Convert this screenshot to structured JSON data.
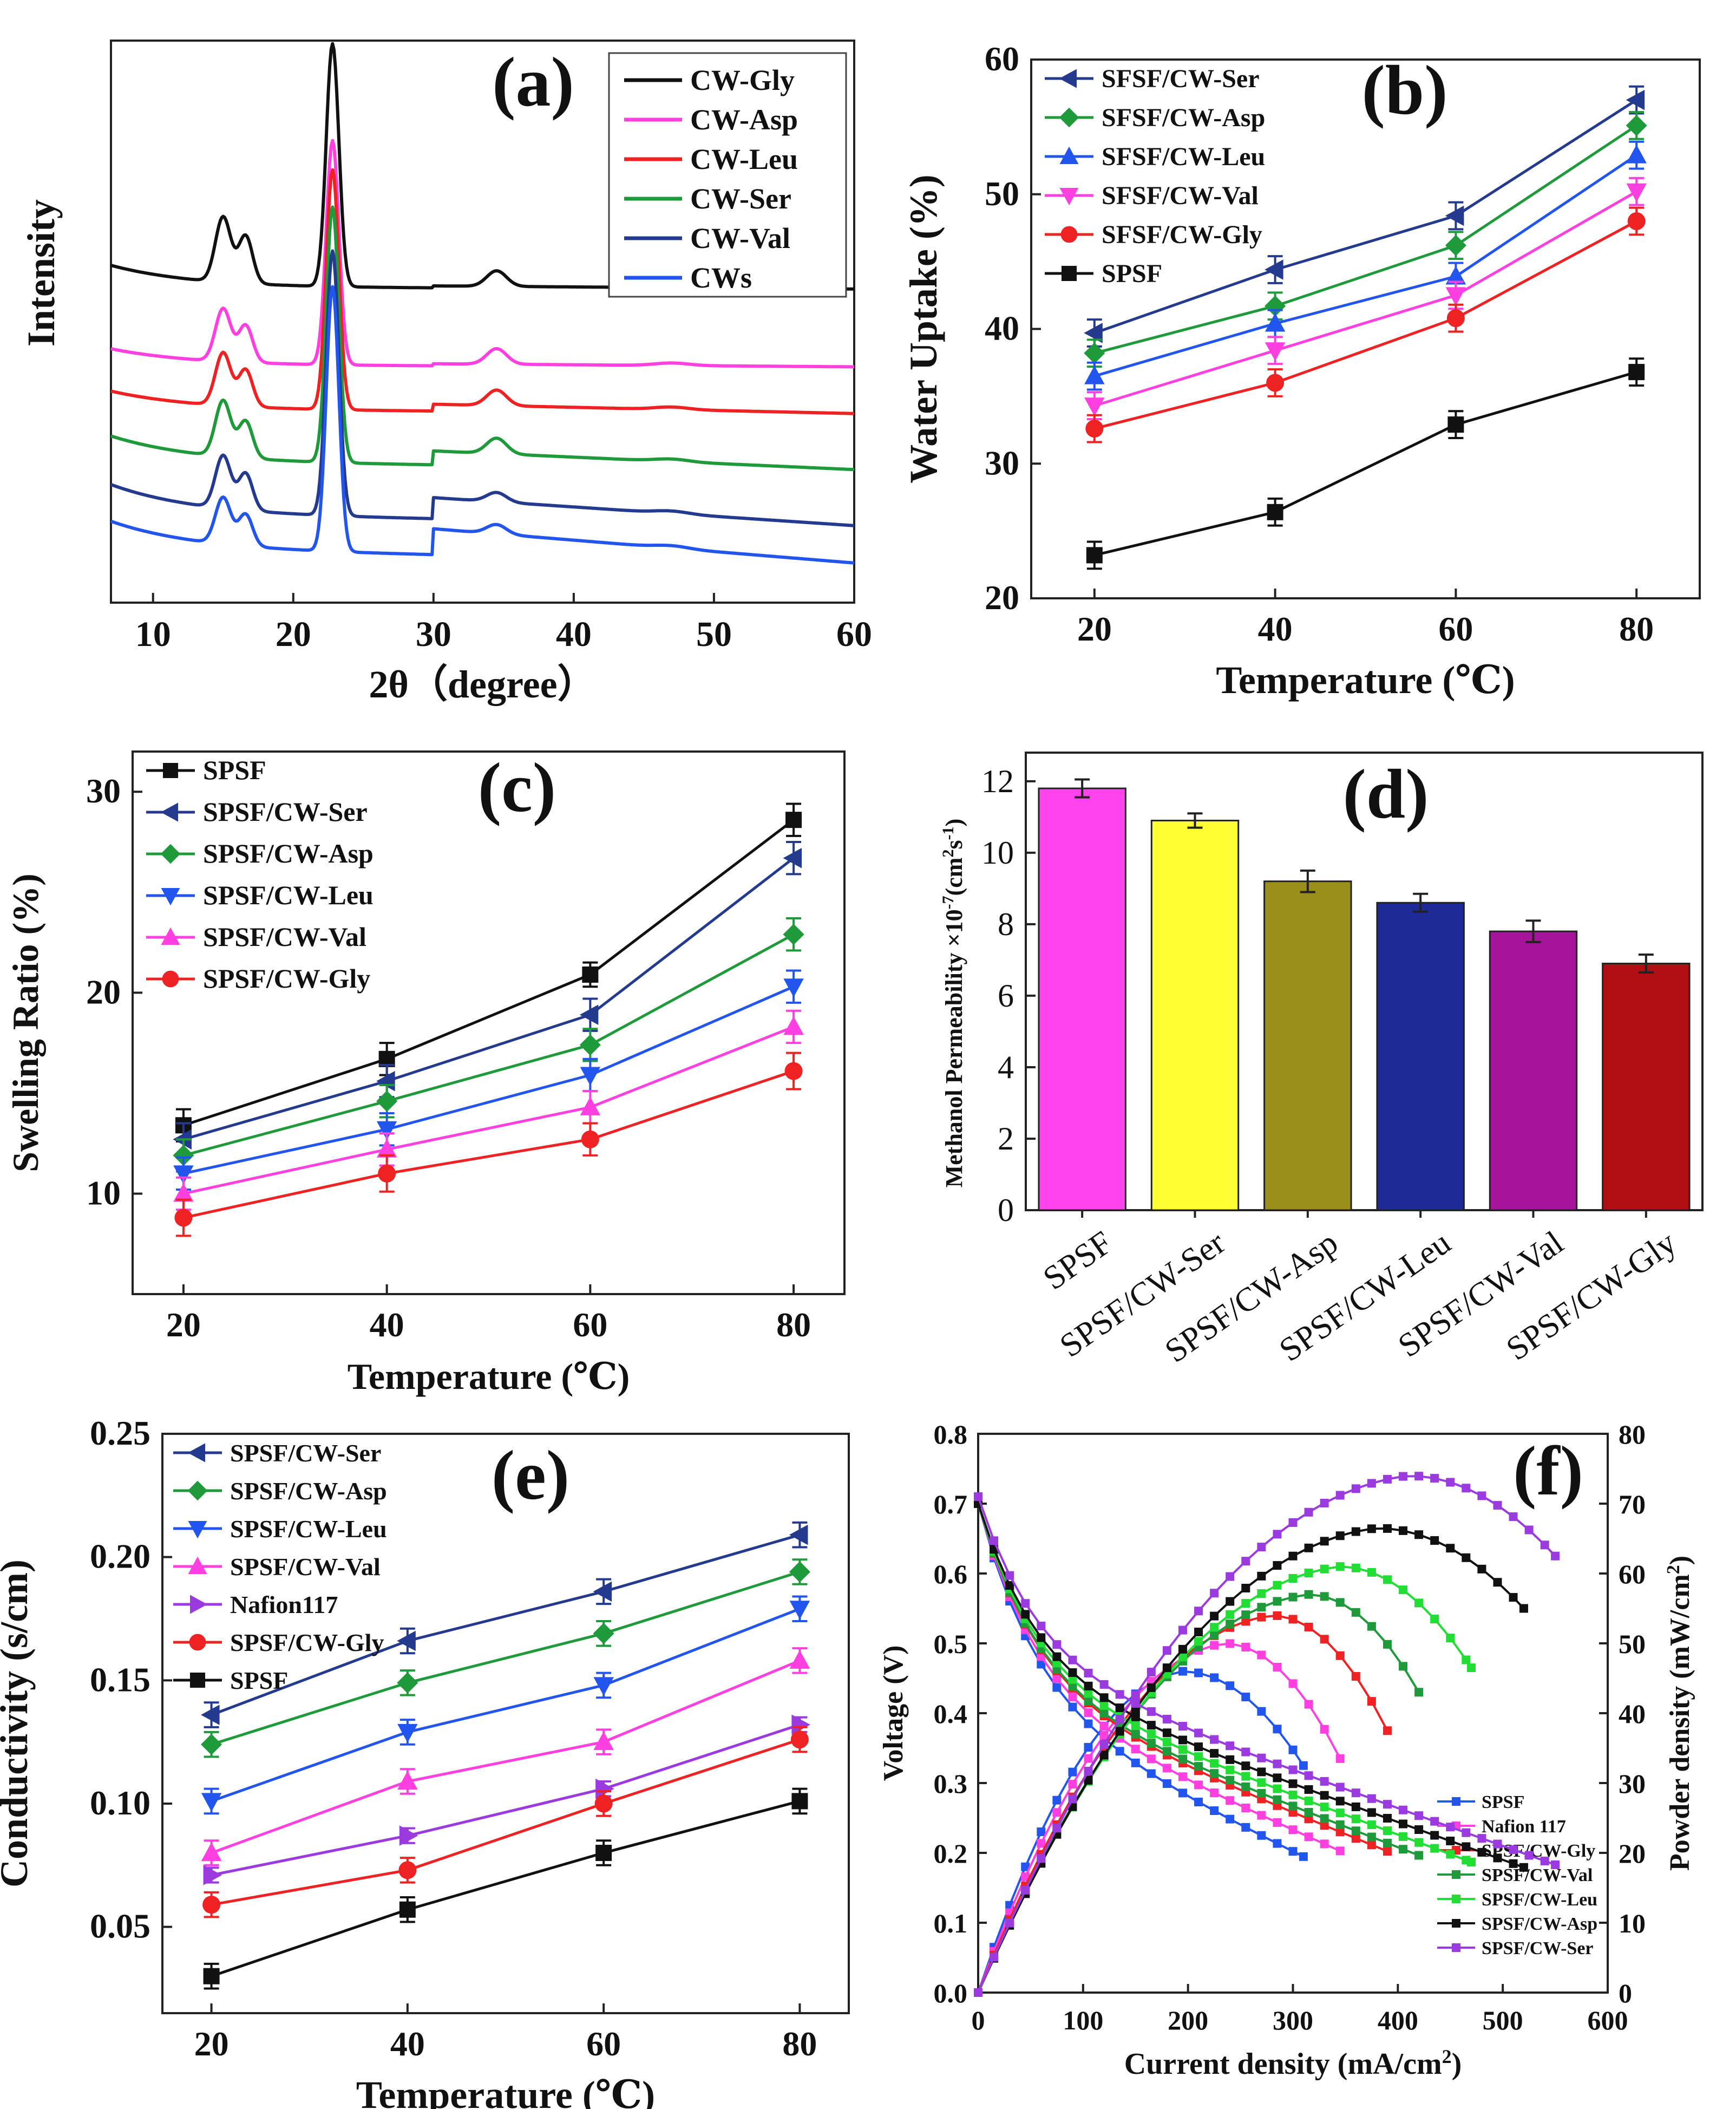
{
  "colors": {
    "black": "#111111",
    "magenta": "#ff3fe0",
    "red": "#ee2222",
    "green": "#1f9a3a",
    "navy": "#233a8f",
    "blue": "#2255ee",
    "violet": "#9b3bdf",
    "brightgreen": "#22dd33",
    "bar_spsf": "#ff44ee",
    "bar_ser": "#ffff33",
    "bar_asp": "#9a8f1a",
    "bar_leu": "#1f2a99",
    "bar_val": "#a7149c",
    "bar_gly": "#b20f14"
  },
  "chart_data": [
    {
      "id": "a",
      "type": "line",
      "panel_label": "(a)",
      "xlabel": "2θ（degree）",
      "ylabel": "Intensity",
      "xlim": [
        7,
        60
      ],
      "xticks": [
        10,
        20,
        30,
        40,
        50,
        60
      ],
      "legend": {
        "position": "top-right"
      },
      "peaks_2theta": [
        15.0,
        16.6,
        22.8,
        34.5
      ],
      "series": [
        {
          "name": "CW-Gly",
          "color": "#111111",
          "baseline": 5.0,
          "pre_peak": 5.55,
          "peak_15": 6.05,
          "peak_16_6": 5.9,
          "peak_22_8": 8.9,
          "peak_34_5": 5.25,
          "tail": 4.95
        },
        {
          "name": "CW-Asp",
          "color": "#ff3fe0",
          "baseline": 3.75,
          "pre_peak": 4.15,
          "peak_15": 4.6,
          "peak_16_6": 4.45,
          "peak_22_8": 7.35,
          "peak_34_5": 4.0,
          "tail": 3.7
        },
        {
          "name": "CW-Leu",
          "color": "#ee2222",
          "baseline": 3.1,
          "pre_peak": 3.45,
          "peak_15": 3.95,
          "peak_16_6": 3.8,
          "peak_22_8": 6.95,
          "peak_34_5": 3.35,
          "tail": 2.95
        },
        {
          "name": "CW-Ser",
          "color": "#1f9a3a",
          "baseline": 2.35,
          "pre_peak": 2.75,
          "peak_15": 3.25,
          "peak_16_6": 3.05,
          "peak_22_8": 6.45,
          "peak_34_5": 2.6,
          "tail": 2.05
        },
        {
          "name": "CW-Val",
          "color": "#233a8f",
          "baseline": 1.6,
          "pre_peak": 1.95,
          "peak_15": 2.45,
          "peak_16_6": 2.3,
          "peak_22_8": 5.85,
          "peak_34_5": 1.75,
          "tail": 1.15
        },
        {
          "name": "CWs",
          "color": "#2255ee",
          "baseline": 1.1,
          "pre_peak": 1.3,
          "peak_15": 1.85,
          "peak_16_6": 1.7,
          "peak_22_8": 5.35,
          "peak_34_5": 1.25,
          "tail": 0.55
        }
      ]
    },
    {
      "id": "b",
      "type": "line",
      "panel_label": "(b)",
      "xlabel": "Temperature (℃)",
      "ylabel": "Water Uptake (%)",
      "x": [
        20,
        40,
        60,
        80
      ],
      "xlim": [
        13,
        87
      ],
      "ylim": [
        20,
        60
      ],
      "xticks": [
        20,
        40,
        60,
        80
      ],
      "yticks": [
        20,
        30,
        40,
        50,
        60
      ],
      "legend": {
        "position": "top-left"
      },
      "series": [
        {
          "name": "SFSF/CW-Ser",
          "color": "#233a8f",
          "marker": "tri-left",
          "values": [
            39.7,
            44.4,
            48.4,
            57.0
          ],
          "err": [
            1.0,
            1.0,
            1.0,
            1.0
          ]
        },
        {
          "name": "SFSF/CW-Asp",
          "color": "#1f9a3a",
          "marker": "diamond",
          "values": [
            38.2,
            41.7,
            46.2,
            55.1
          ],
          "err": [
            1.0,
            1.0,
            1.0,
            1.0
          ]
        },
        {
          "name": "SFSF/CW-Leu",
          "color": "#2255ee",
          "marker": "tri-up",
          "values": [
            36.5,
            40.4,
            43.9,
            52.9
          ],
          "err": [
            1.0,
            1.0,
            1.0,
            1.0
          ]
        },
        {
          "name": "SFSF/CW-Val",
          "color": "#ff3fe0",
          "marker": "tri-down",
          "values": [
            34.3,
            38.4,
            42.5,
            50.2
          ],
          "err": [
            1.0,
            1.0,
            1.0,
            1.0
          ]
        },
        {
          "name": "SFSF/CW-Gly",
          "color": "#ee2222",
          "marker": "circle",
          "values": [
            32.6,
            36.0,
            40.8,
            48.0
          ],
          "err": [
            1.0,
            1.0,
            1.0,
            1.0
          ]
        },
        {
          "name": "SPSF",
          "color": "#111111",
          "marker": "square",
          "values": [
            23.2,
            26.4,
            32.9,
            36.8
          ],
          "err": [
            1.0,
            1.0,
            1.0,
            1.0
          ]
        }
      ]
    },
    {
      "id": "c",
      "type": "line",
      "panel_label": "(c)",
      "xlabel": "Temperature (℃)",
      "ylabel": "Swelling Ratio (%)",
      "x": [
        20,
        40,
        60,
        80
      ],
      "xlim": [
        15,
        85
      ],
      "ylim": [
        5,
        32
      ],
      "xticks": [
        20,
        40,
        60,
        80
      ],
      "yticks": [
        10,
        20,
        30
      ],
      "legend": {
        "position": "top-left"
      },
      "series": [
        {
          "name": "SPSF",
          "color": "#111111",
          "marker": "square",
          "values": [
            13.4,
            16.7,
            20.9,
            28.6
          ],
          "err": [
            0.8,
            0.8,
            0.6,
            0.8
          ]
        },
        {
          "name": "SPSF/CW-Ser",
          "color": "#233a8f",
          "marker": "tri-left",
          "values": [
            12.7,
            15.6,
            18.9,
            26.7
          ],
          "err": [
            0.8,
            0.8,
            0.8,
            0.8
          ]
        },
        {
          "name": "SPSF/CW-Asp",
          "color": "#1f9a3a",
          "marker": "diamond",
          "values": [
            11.9,
            14.6,
            17.4,
            22.9
          ],
          "err": [
            0.8,
            0.8,
            0.8,
            0.8
          ]
        },
        {
          "name": "SPSF/CW-Leu",
          "color": "#2255ee",
          "marker": "tri-down",
          "values": [
            11.0,
            13.2,
            15.9,
            20.3
          ],
          "err": [
            0.8,
            0.8,
            0.8,
            0.8
          ]
        },
        {
          "name": "SPSF/CW-Val",
          "color": "#ff3fe0",
          "marker": "tri-up",
          "values": [
            10.0,
            12.2,
            14.3,
            18.3
          ],
          "err": [
            0.8,
            0.8,
            0.8,
            0.8
          ]
        },
        {
          "name": "SPSF/CW-Gly",
          "color": "#ee2222",
          "marker": "circle",
          "values": [
            8.8,
            11.0,
            12.7,
            16.1
          ],
          "err": [
            0.9,
            0.9,
            0.8,
            0.9
          ]
        }
      ]
    },
    {
      "id": "d",
      "type": "bar",
      "panel_label": "(d)",
      "xlabel": "",
      "ylabel": "Methanol Permeability ×10",
      "ylabel_sup": "-7",
      "ylabel_unit": "(cm",
      "ylabel_unit_sup": "2",
      "ylabel_unit_mid": "s",
      "ylabel_unit_sup2": "-1",
      "ylabel_unit_end": ")",
      "ylim": [
        0,
        12.8
      ],
      "yticks": [
        0,
        2,
        4,
        6,
        8,
        10,
        12
      ],
      "categories": [
        "SPSF",
        "SPSF/CW-Ser",
        "SPSF/CW-Asp",
        "SPSF/CW-Leu",
        "SPSF/CW-Val",
        "SPSF/CW-Gly"
      ],
      "values": [
        11.8,
        10.9,
        9.2,
        8.6,
        7.8,
        6.9
      ],
      "err": [
        0.25,
        0.2,
        0.3,
        0.25,
        0.3,
        0.25
      ],
      "colors": [
        "#ff44ee",
        "#ffff33",
        "#9a8f1a",
        "#1f2a99",
        "#a7149c",
        "#b20f14"
      ]
    },
    {
      "id": "e",
      "type": "line",
      "panel_label": "(e)",
      "xlabel": "Temperature (℃)",
      "ylabel": "Conductivity (s/cm)",
      "x": [
        20,
        40,
        60,
        80
      ],
      "xlim": [
        15,
        85
      ],
      "ylim": [
        0.015,
        0.25
      ],
      "xticks": [
        20,
        40,
        60,
        80
      ],
      "yticks": [
        0.05,
        0.1,
        0.15,
        0.2,
        0.25
      ],
      "ytick_labels": [
        "0.05",
        "0.10",
        "0.15",
        "0.20",
        "0.25"
      ],
      "legend": {
        "position": "top-left"
      },
      "series": [
        {
          "name": "SPSF/CW-Ser",
          "color": "#233a8f",
          "marker": "tri-left",
          "values": [
            0.136,
            0.166,
            0.186,
            0.209
          ],
          "err": [
            0.005,
            0.005,
            0.005,
            0.005
          ]
        },
        {
          "name": "SPSF/CW-Asp",
          "color": "#1f9a3a",
          "marker": "diamond",
          "values": [
            0.124,
            0.149,
            0.169,
            0.194
          ],
          "err": [
            0.005,
            0.005,
            0.005,
            0.005
          ]
        },
        {
          "name": "SPSF/CW-Leu",
          "color": "#2255ee",
          "marker": "tri-down",
          "values": [
            0.101,
            0.129,
            0.148,
            0.179
          ],
          "err": [
            0.005,
            0.005,
            0.005,
            0.005
          ]
        },
        {
          "name": "SPSF/CW-Val",
          "color": "#ff3fe0",
          "marker": "tri-up",
          "values": [
            0.08,
            0.109,
            0.125,
            0.158
          ],
          "err": [
            0.005,
            0.005,
            0.005,
            0.005
          ]
        },
        {
          "name": "Nafion117",
          "color": "#9b3bdf",
          "marker": "tri-right",
          "values": [
            0.071,
            0.087,
            0.106,
            0.132
          ],
          "err": [
            0.003,
            0.003,
            0.003,
            0.003
          ]
        },
        {
          "name": "SPSF/CW-Gly",
          "color": "#ee2222",
          "marker": "circle",
          "values": [
            0.059,
            0.073,
            0.1,
            0.126
          ],
          "err": [
            0.005,
            0.005,
            0.005,
            0.005
          ]
        },
        {
          "name": "SPSF",
          "color": "#111111",
          "marker": "square",
          "values": [
            0.03,
            0.057,
            0.08,
            0.101
          ],
          "err": [
            0.005,
            0.005,
            0.005,
            0.005
          ]
        }
      ]
    },
    {
      "id": "f",
      "type": "line",
      "panel_label": "(f)",
      "xlabel": "Current density (mA/cm",
      "xlabel_sup": "2",
      "xlabel_end": ")",
      "ylabel": "Voltage (V)",
      "y2label": "Powder density (mW/cm",
      "y2label_sup": "2",
      "y2label_end": ")",
      "xlim": [
        0,
        600
      ],
      "ylim": [
        0,
        0.8
      ],
      "y2lim": [
        0,
        80
      ],
      "xticks": [
        0,
        100,
        200,
        300,
        400,
        500,
        600
      ],
      "yticks": [
        0.0,
        0.1,
        0.2,
        0.3,
        0.4,
        0.5,
        0.6,
        0.7,
        0.8
      ],
      "ytick_labels": [
        "0.0",
        "0.1",
        "0.2",
        "0.3",
        "0.4",
        "0.5",
        "0.6",
        "0.7",
        "0.8"
      ],
      "y2ticks": [
        0,
        10,
        20,
        30,
        40,
        50,
        60,
        70,
        80
      ],
      "legend": {
        "position": "bottom-right"
      },
      "series": [
        {
          "name": "SPSF",
          "color": "#2255ee",
          "v0": 0.7,
          "v_high": 0.42,
          "slope": 0.00073,
          "peak_power": 46,
          "peak_at": 195,
          "end_power": 32.5,
          "x_max": 310
        },
        {
          "name": "Nafion 117",
          "color": "#ff3fe0",
          "v0": 0.7,
          "v_high": 0.43,
          "slope": 0.00066,
          "peak_power": 50,
          "peak_at": 235,
          "end_power": 33.5,
          "x_max": 345
        },
        {
          "name": "SPSF/CW-Gly",
          "color": "#ee2222",
          "v0": 0.7,
          "v_high": 0.44,
          "slope": 0.00061,
          "peak_power": 54,
          "peak_at": 280,
          "end_power": 37.5,
          "x_max": 390
        },
        {
          "name": "SPSF/CW-Val",
          "color": "#1f9a3a",
          "v0": 0.7,
          "v_high": 0.44,
          "slope": 0.00058,
          "peak_power": 57,
          "peak_at": 315,
          "end_power": 43,
          "x_max": 420
        },
        {
          "name": "SPSF/CW-Leu",
          "color": "#22dd33",
          "v0": 0.7,
          "v_high": 0.45,
          "slope": 0.00056,
          "peak_power": 61,
          "peak_at": 345,
          "end_power": 46.5,
          "x_max": 470
        },
        {
          "name": "SPSF/CW-Asp",
          "color": "#111111",
          "v0": 0.7,
          "v_high": 0.46,
          "slope": 0.00054,
          "peak_power": 66.5,
          "peak_at": 380,
          "end_power": 55,
          "x_max": 520
        },
        {
          "name": "SPSF/CW-Ser",
          "color": "#9b3bdf",
          "v0": 0.71,
          "v_high": 0.48,
          "slope": 0.00054,
          "peak_power": 74,
          "peak_at": 410,
          "end_power": 62.5,
          "x_max": 550
        }
      ]
    }
  ]
}
